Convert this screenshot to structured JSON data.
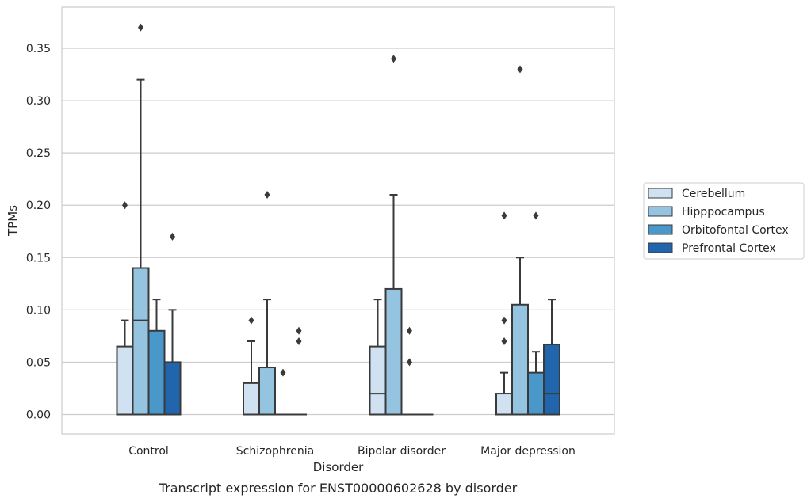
{
  "caption": "Transcript expression for ENST00000602628 by disorder",
  "chart_data": {
    "type": "box",
    "xlabel": "Disorder",
    "ylabel": "TPMs",
    "ylim": [
      -0.018,
      0.39
    ],
    "yticks": [
      "0.00",
      "0.05",
      "0.10",
      "0.15",
      "0.20",
      "0.25",
      "0.30",
      "0.35"
    ],
    "grid": true,
    "legend_position": "right",
    "categories": [
      "Control",
      "Schizophrenia",
      "Bipolar disorder",
      "Major depression"
    ],
    "series": [
      {
        "name": "Cerebellum",
        "color": "#d0e1f2",
        "boxes": [
          {
            "q1": 0.0,
            "median": 0.0,
            "q3": 0.065,
            "whisker_low": 0.0,
            "whisker_high": 0.09,
            "outliers": [
              0.2
            ]
          },
          {
            "q1": 0.0,
            "median": 0.0,
            "q3": 0.03,
            "whisker_low": 0.0,
            "whisker_high": 0.07,
            "outliers": [
              0.09
            ]
          },
          {
            "q1": 0.0,
            "median": 0.02,
            "q3": 0.065,
            "whisker_low": 0.0,
            "whisker_high": 0.11,
            "outliers": []
          },
          {
            "q1": 0.0,
            "median": 0.0,
            "q3": 0.02,
            "whisker_low": 0.0,
            "whisker_high": 0.04,
            "outliers": [
              0.07,
              0.09,
              0.19
            ]
          }
        ]
      },
      {
        "name": "Hipppocampus",
        "color": "#94c4df",
        "boxes": [
          {
            "q1": 0.0,
            "median": 0.09,
            "q3": 0.14,
            "whisker_low": 0.0,
            "whisker_high": 0.32,
            "outliers": [
              0.37
            ]
          },
          {
            "q1": 0.0,
            "median": 0.0,
            "q3": 0.045,
            "whisker_low": 0.0,
            "whisker_high": 0.11,
            "outliers": [
              0.21
            ]
          },
          {
            "q1": 0.0,
            "median": 0.0,
            "q3": 0.12,
            "whisker_low": 0.0,
            "whisker_high": 0.21,
            "outliers": [
              0.34
            ]
          },
          {
            "q1": 0.0,
            "median": 0.0,
            "q3": 0.105,
            "whisker_low": 0.0,
            "whisker_high": 0.15,
            "outliers": [
              0.33
            ]
          }
        ]
      },
      {
        "name": "Orbitofontal Cortex",
        "color": "#4a98c9",
        "boxes": [
          {
            "q1": 0.0,
            "median": 0.0,
            "q3": 0.08,
            "whisker_low": 0.0,
            "whisker_high": 0.11,
            "outliers": []
          },
          {
            "q1": 0.0,
            "median": 0.0,
            "q3": 0.0,
            "whisker_low": 0.0,
            "whisker_high": 0.0,
            "outliers": [
              0.04
            ]
          },
          {
            "q1": 0.0,
            "median": 0.0,
            "q3": 0.0,
            "whisker_low": 0.0,
            "whisker_high": 0.0,
            "outliers": [
              0.05,
              0.08
            ]
          },
          {
            "q1": 0.0,
            "median": 0.0,
            "q3": 0.04,
            "whisker_low": 0.0,
            "whisker_high": 0.06,
            "outliers": [
              0.19
            ]
          }
        ]
      },
      {
        "name": "Prefrontal Cortex",
        "color": "#2166ac",
        "boxes": [
          {
            "q1": 0.0,
            "median": 0.0,
            "q3": 0.05,
            "whisker_low": 0.0,
            "whisker_high": 0.1,
            "outliers": [
              0.17
            ]
          },
          {
            "q1": 0.0,
            "median": 0.0,
            "q3": 0.0,
            "whisker_low": 0.0,
            "whisker_high": 0.0,
            "outliers": [
              0.07,
              0.08
            ]
          },
          {
            "q1": 0.0,
            "median": 0.0,
            "q3": 0.0,
            "whisker_low": 0.0,
            "whisker_high": 0.0,
            "outliers": []
          },
          {
            "q1": 0.0,
            "median": 0.02,
            "q3": 0.067,
            "whisker_low": 0.0,
            "whisker_high": 0.11,
            "outliers": []
          }
        ]
      }
    ]
  }
}
